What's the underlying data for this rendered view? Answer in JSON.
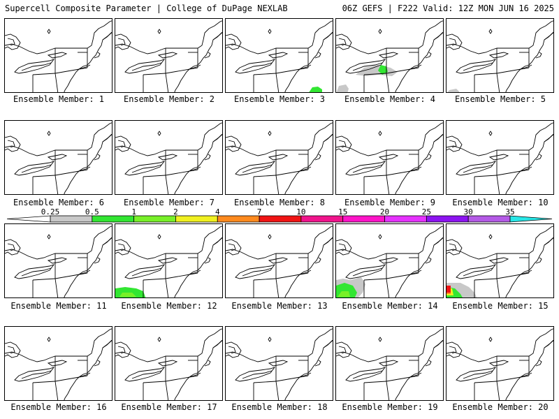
{
  "header": {
    "title": "Supercell Composite Parameter | College of DuPage NEXLAB",
    "run_info": "06Z GEFS | F222 Valid: 12Z MON JUN 16 2025"
  },
  "colorbar": {
    "labels": [
      "0.25",
      "0.5",
      "1",
      "2",
      "4",
      "7",
      "10",
      "15",
      "20",
      "25",
      "30",
      "35"
    ],
    "colors": [
      "#c8c8c8",
      "#32e632",
      "#78f028",
      "#f0f020",
      "#ff8a1e",
      "#f01414",
      "#f0148c",
      "#ff14c8",
      "#e632ff",
      "#8c14f0",
      "#b45ae6",
      "#28e6e6"
    ],
    "low_end_color": "#ffffff"
  },
  "members": [
    {
      "label": "Ensemble Member: 1",
      "shading": []
    },
    {
      "label": "Ensemble Member: 2",
      "shading": []
    },
    {
      "label": "Ensemble Member: 3",
      "shading": [
        "green"
      ]
    },
    {
      "label": "Ensemble Member: 4",
      "shading": [
        "gray",
        "green"
      ]
    },
    {
      "label": "Ensemble Member: 5",
      "shading": [
        "gray"
      ]
    },
    {
      "label": "Ensemble Member: 6",
      "shading": []
    },
    {
      "label": "Ensemble Member: 7",
      "shading": []
    },
    {
      "label": "Ensemble Member: 8",
      "shading": []
    },
    {
      "label": "Ensemble Member: 9",
      "shading": []
    },
    {
      "label": "Ensemble Member: 10",
      "shading": []
    },
    {
      "label": "Ensemble Member: 11",
      "shading": []
    },
    {
      "label": "Ensemble Member: 12",
      "shading": [
        "green",
        "lightgreen"
      ]
    },
    {
      "label": "Ensemble Member: 13",
      "shading": []
    },
    {
      "label": "Ensemble Member: 14",
      "shading": [
        "gray",
        "green",
        "lightgreen"
      ]
    },
    {
      "label": "Ensemble Member: 15",
      "shading": [
        "gray",
        "green",
        "yellow",
        "orange",
        "red"
      ]
    },
    {
      "label": "Ensemble Member: 16",
      "shading": []
    },
    {
      "label": "Ensemble Member: 17",
      "shading": []
    },
    {
      "label": "Ensemble Member: 18",
      "shading": []
    },
    {
      "label": "Ensemble Member: 19",
      "shading": []
    },
    {
      "label": "Ensemble Member: 20",
      "shading": []
    }
  ]
}
